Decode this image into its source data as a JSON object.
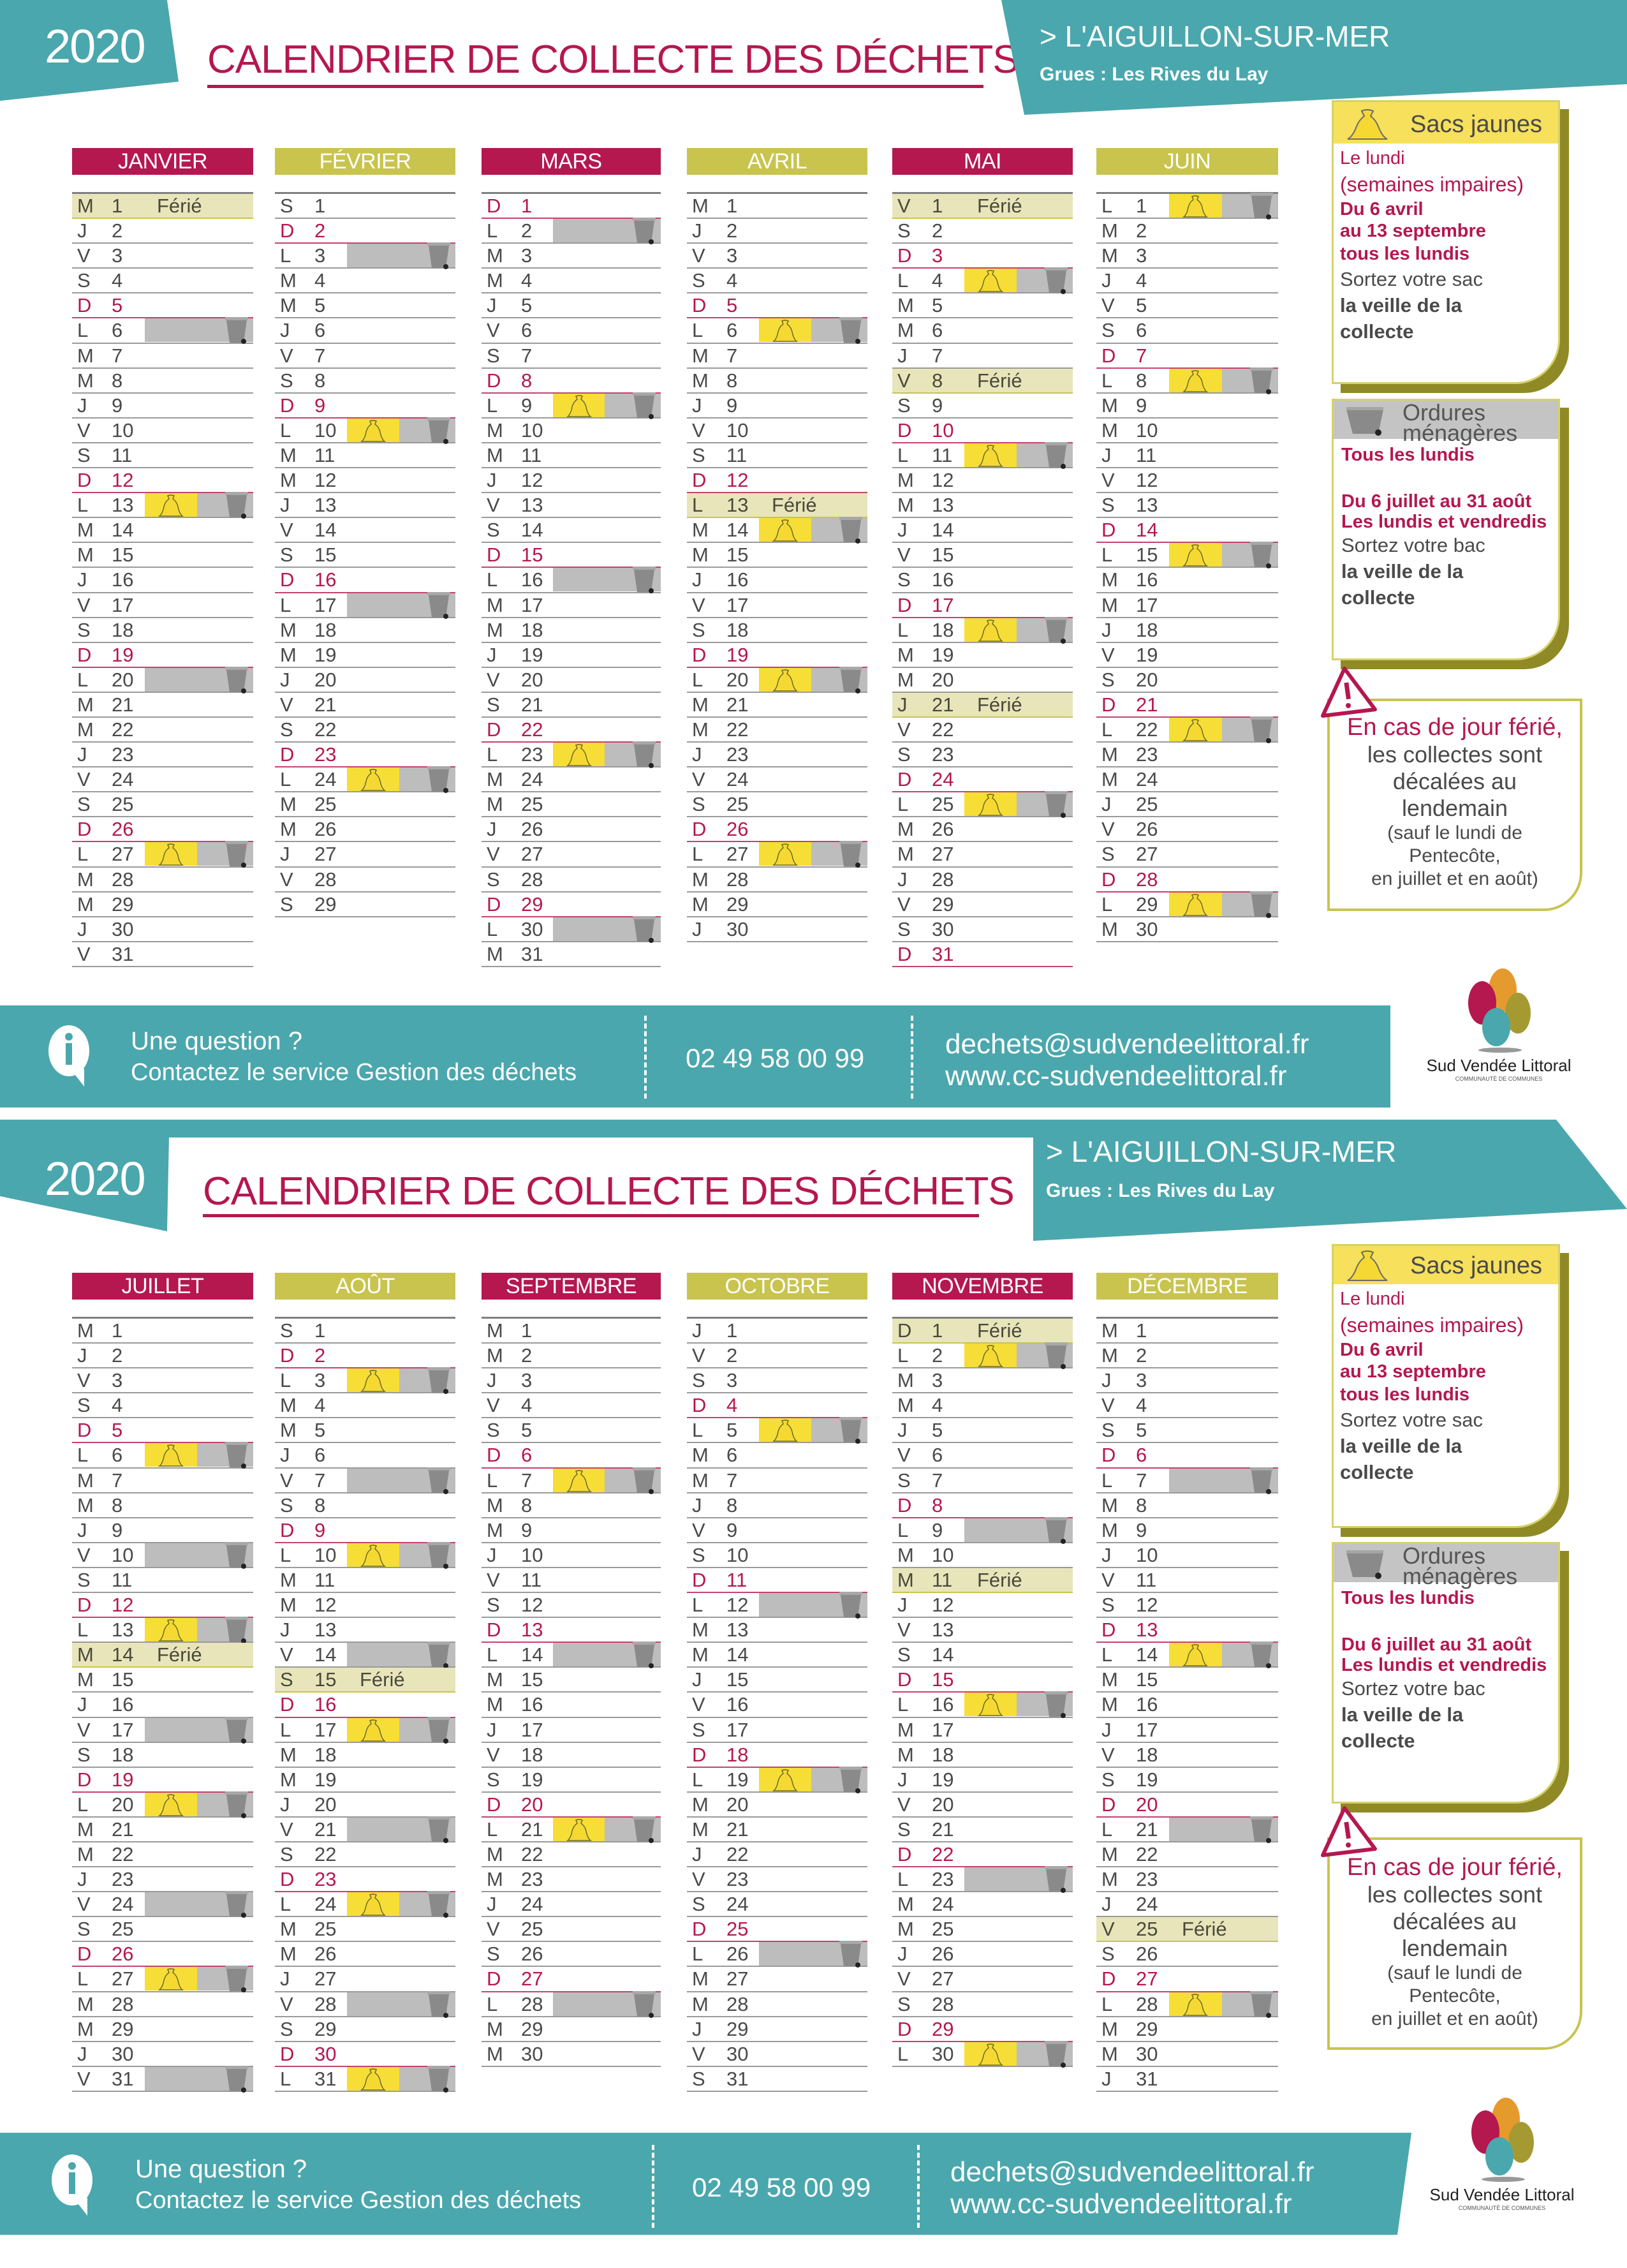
{
  "colors": {
    "teal": "#4aa7ad",
    "pink": "#b5174f",
    "olive": "#c8c44e",
    "yellow": "#f6de36",
    "grey": "#bdbdbd",
    "holiday_bg": "#e8e5bb"
  },
  "header": {
    "year": "2020",
    "title": "CALENDRIER DE COLLECTE DES DÉCHETS",
    "location": "> L'AIGUILLON-SUR-MER",
    "sublocation": "Grues : Les Rives du Lay"
  },
  "legend": {
    "sacs_title": "Sacs jaunes",
    "sacs_lines_pink": [
      "Le lundi",
      "(semaines impaires)",
      "Du 6 avril",
      "au 13 septembre",
      "tous les lundis"
    ],
    "sacs_lines_grey": [
      "Sortez votre sac",
      "la veille de la",
      "collecte"
    ],
    "om_title_1": "Ordures",
    "om_title_2": "ménagères",
    "om_lines_pink_1": "Tous les lundis",
    "om_lines_pink_2": [
      "Du 6 juillet au 31 août",
      "Les lundis et vendredis"
    ],
    "om_lines_grey": [
      "Sortez votre bac",
      "la veille de la",
      "collecte"
    ],
    "warning_title": "En cas de jour férié,",
    "warning_lines": [
      "les collectes sont",
      "décalées au",
      "lendemain"
    ],
    "warning_small": [
      "(sauf le lundi de",
      "Pentecôte,",
      "en juillet et en août)"
    ]
  },
  "footer": {
    "question": "Une question ?",
    "contact": "Contactez le service Gestion des déchets",
    "phone": "02 49 58 00 99",
    "email": "dechets@sudvendeelittoral.fr",
    "website": "www.cc-sudvendeelittoral.fr",
    "logo_name": "Sud Vendée Littoral",
    "logo_sub": "COMMUNAUTÉ DE COMMUNES"
  },
  "holiday_label": "Férié",
  "months": [
    {
      "name": "JANVIER",
      "color": "pink",
      "start": "M",
      "days": 31,
      "holidays": [
        1
      ],
      "yellow": [
        13,
        27
      ],
      "grey": [
        6,
        13,
        20,
        27
      ]
    },
    {
      "name": "FÉVRIER",
      "color": "olive",
      "start": "S",
      "days": 29,
      "holidays": [],
      "yellow": [
        10,
        24
      ],
      "grey": [
        3,
        10,
        17,
        24
      ]
    },
    {
      "name": "MARS",
      "color": "pink",
      "start": "D",
      "days": 31,
      "holidays": [],
      "yellow": [
        9,
        23
      ],
      "grey": [
        2,
        9,
        16,
        23,
        30
      ]
    },
    {
      "name": "AVRIL",
      "color": "olive",
      "start": "M",
      "days": 30,
      "holidays": [
        13
      ],
      "yellow": [
        6,
        14,
        20,
        27
      ],
      "grey": [
        6,
        14,
        20,
        27
      ]
    },
    {
      "name": "MAI",
      "color": "pink",
      "start": "V",
      "days": 31,
      "holidays": [
        1,
        8,
        21
      ],
      "yellow": [
        4,
        11,
        18,
        25
      ],
      "grey": [
        4,
        11,
        18,
        25
      ]
    },
    {
      "name": "JUIN",
      "color": "olive",
      "start": "L",
      "days": 30,
      "holidays": [],
      "yellow": [
        1,
        8,
        15,
        22,
        29
      ],
      "grey": [
        1,
        8,
        15,
        22,
        29
      ]
    },
    {
      "name": "JUILLET",
      "color": "pink",
      "start": "M",
      "days": 31,
      "holidays": [
        14
      ],
      "yellow": [
        6,
        13,
        20,
        27
      ],
      "grey": [
        6,
        10,
        13,
        17,
        20,
        24,
        27,
        31
      ]
    },
    {
      "name": "AOÛT",
      "color": "olive",
      "start": "S",
      "days": 31,
      "holidays": [
        15
      ],
      "yellow": [
        3,
        10,
        17,
        24,
        31
      ],
      "grey": [
        3,
        7,
        10,
        14,
        17,
        21,
        24,
        28,
        31
      ]
    },
    {
      "name": "SEPTEMBRE",
      "color": "pink",
      "start": "M",
      "days": 30,
      "holidays": [],
      "yellow": [
        7,
        21
      ],
      "grey": [
        7,
        14,
        21,
        28
      ]
    },
    {
      "name": "OCTOBRE",
      "color": "olive",
      "start": "J",
      "days": 31,
      "holidays": [],
      "yellow": [
        5,
        19
      ],
      "grey": [
        5,
        12,
        19,
        26
      ]
    },
    {
      "name": "NOVEMBRE",
      "color": "pink",
      "start": "D",
      "days": 30,
      "holidays": [
        1,
        11
      ],
      "yellow": [
        2,
        16,
        30
      ],
      "grey": [
        2,
        9,
        16,
        23,
        30
      ]
    },
    {
      "name": "DÉCEMBRE",
      "color": "olive",
      "start": "M",
      "days": 31,
      "holidays": [
        25
      ],
      "yellow": [
        14,
        28
      ],
      "grey": [
        7,
        14,
        21,
        28
      ]
    }
  ]
}
